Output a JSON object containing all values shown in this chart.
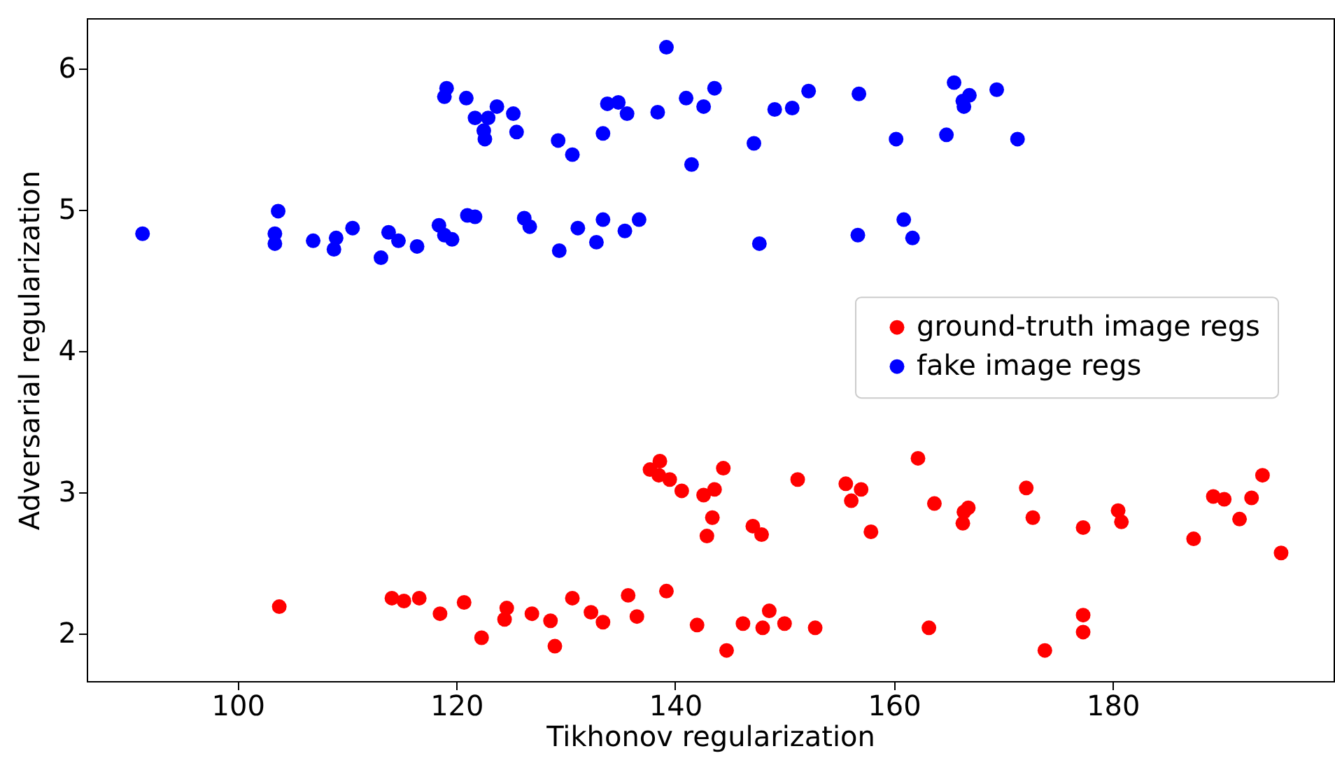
{
  "chart_data": {
    "type": "scatter",
    "xlabel": "Tikhonov regularization",
    "ylabel": "Adversarial regularization",
    "xlim": [
      86.2,
      200.2
    ],
    "ylim": [
      1.663,
      6.356
    ],
    "xticks": [
      100,
      120,
      140,
      160,
      180
    ],
    "yticks": [
      2,
      3,
      4,
      5,
      6
    ],
    "grid": false,
    "legend": "right",
    "marker": "circle",
    "series": [
      {
        "name": "ground-truth image regs",
        "color": "#ff0000",
        "x": [
          103.8,
          114.1,
          115.2,
          116.6,
          118.5,
          120.7,
          122.3,
          124.6,
          124.4,
          126.9,
          129.0,
          128.6,
          130.6,
          132.3,
          133.4,
          135.7,
          136.5,
          139.2,
          142.0,
          144.7,
          146.2,
          148.0,
          148.6,
          150.0,
          152.8,
          163.2,
          173.8,
          177.3,
          177.3,
          137.7,
          138.6,
          138.5,
          139.5,
          140.6,
          144.4,
          142.6,
          143.6,
          143.4,
          142.9,
          147.1,
          147.9,
          151.2,
          155.6,
          157.0,
          156.1,
          157.9,
          162.2,
          163.7,
          166.8,
          166.4,
          166.3,
          172.1,
          172.7,
          177.3,
          180.5,
          180.8,
          187.4,
          189.2,
          190.2,
          192.7,
          191.6,
          193.7,
          195.4
        ],
        "values": [
          2.19,
          2.25,
          2.23,
          2.25,
          2.14,
          2.22,
          1.97,
          2.18,
          2.1,
          2.14,
          1.91,
          2.09,
          2.25,
          2.15,
          2.08,
          2.27,
          2.12,
          2.3,
          2.06,
          1.88,
          2.07,
          2.04,
          2.16,
          2.07,
          2.04,
          2.04,
          1.88,
          2.13,
          2.01,
          3.16,
          3.22,
          3.12,
          3.09,
          3.01,
          3.17,
          2.98,
          3.02,
          2.82,
          2.69,
          2.76,
          2.7,
          3.09,
          3.06,
          3.02,
          2.94,
          2.72,
          3.24,
          2.92,
          2.89,
          2.86,
          2.78,
          3.03,
          2.82,
          2.75,
          2.87,
          2.79,
          2.67,
          2.97,
          2.95,
          2.96,
          2.81,
          3.12,
          2.57
        ]
      },
      {
        "name": "fake image regs",
        "color": "#0000ff",
        "x": [
          91.3,
          103.7,
          103.4,
          103.4,
          106.9,
          109.0,
          108.8,
          110.5,
          113.1,
          113.8,
          114.7,
          116.4,
          118.4,
          118.9,
          119.6,
          121.0,
          121.7,
          126.2,
          126.7,
          131.1,
          133.4,
          129.4,
          132.8,
          135.4,
          136.7,
          147.7,
          156.7,
          160.9,
          161.7,
          119.1,
          118.9,
          120.9,
          121.7,
          122.9,
          123.7,
          122.5,
          122.6,
          125.2,
          125.5,
          139.2,
          133.8,
          134.8,
          135.6,
          138.4,
          141.0,
          142.6,
          143.6,
          129.3,
          130.6,
          133.4,
          141.5,
          147.2,
          149.1,
          150.7,
          152.2,
          156.8,
          165.5,
          166.9,
          166.3,
          166.4,
          169.4,
          160.2,
          164.8,
          171.3
        ],
        "values": [
          4.83,
          4.99,
          4.83,
          4.76,
          4.78,
          4.8,
          4.72,
          4.87,
          4.66,
          4.84,
          4.78,
          4.74,
          4.89,
          4.82,
          4.79,
          4.96,
          4.95,
          4.94,
          4.88,
          4.87,
          4.93,
          4.71,
          4.77,
          4.85,
          4.93,
          4.76,
          4.82,
          4.93,
          4.8,
          5.86,
          5.8,
          5.79,
          5.65,
          5.65,
          5.73,
          5.56,
          5.5,
          5.68,
          5.55,
          6.15,
          5.75,
          5.76,
          5.68,
          5.69,
          5.79,
          5.73,
          5.86,
          5.49,
          5.39,
          5.54,
          5.32,
          5.47,
          5.71,
          5.72,
          5.84,
          5.82,
          5.9,
          5.81,
          5.77,
          5.73,
          5.85,
          5.5,
          5.53,
          5.5
        ]
      }
    ]
  }
}
